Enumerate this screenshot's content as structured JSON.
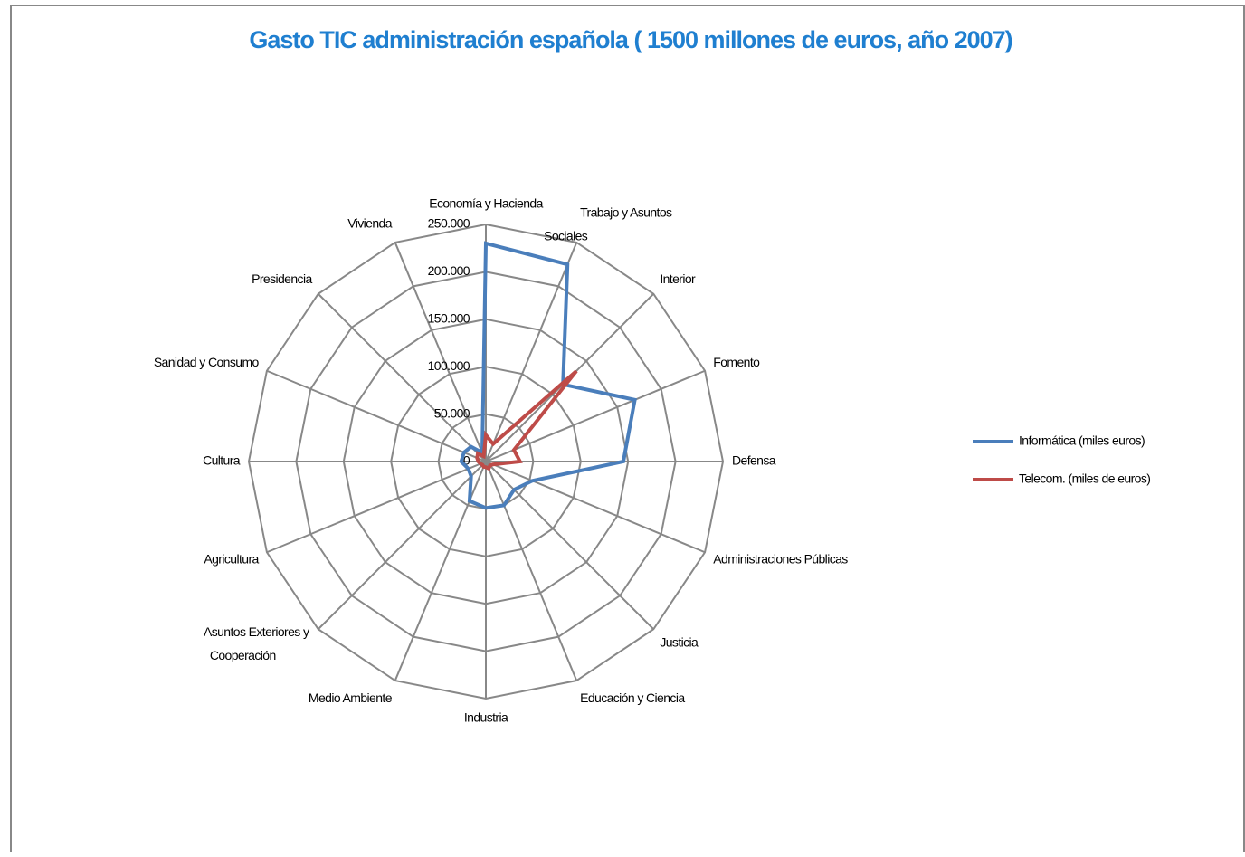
{
  "chart_data": {
    "type": "radar",
    "title": "Gasto TIC administración española ( 1500 millones de euros, año 2007)",
    "categories": [
      "Economía y Hacienda",
      "Trabajo y Asuntos Sociales",
      "Interior",
      "Fomento",
      "Defensa",
      "Administraciones Públicas",
      "Justicia",
      "Educación y Ciencia",
      "Industria",
      "Medio Ambiente",
      "Asuntos Exteriores y Cooperación",
      "Agricultura",
      "Cultura",
      "Sanidad y Consumo",
      "Presidencia",
      "Vivienda"
    ],
    "series": [
      {
        "name": "Informática (miles euros)",
        "color": "#4a7ebb",
        "values": [
          230000,
          225000,
          115000,
          170000,
          145000,
          53000,
          42000,
          50000,
          49000,
          45000,
          22000,
          20000,
          26000,
          25000,
          22000,
          10000
        ]
      },
      {
        "name": "Telecom. (miles de euros)",
        "color": "#be4b48",
        "values": [
          28000,
          20000,
          135000,
          32000,
          36000,
          8000,
          6000,
          8000,
          6000,
          6000,
          5000,
          6000,
          8000,
          10000,
          12000,
          6000
        ]
      }
    ],
    "ylim": [
      0,
      250000
    ],
    "yticks": [
      0,
      {
        "value": 50000,
        "label": "50.000"
      },
      {
        "value": 100000,
        "label": "100.000"
      },
      {
        "value": 150000,
        "label": "150.000"
      },
      {
        "value": 200000,
        "label": "200.000"
      },
      {
        "value": 250000,
        "label": "250.000"
      }
    ],
    "grid": true,
    "legend": "right"
  }
}
